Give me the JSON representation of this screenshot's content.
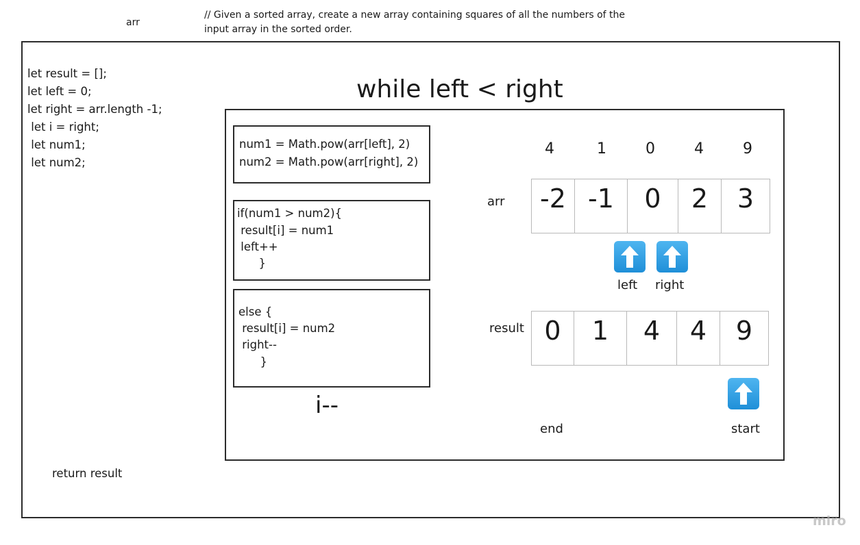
{
  "header": {
    "arr_label": "arr",
    "comment_line1": "// Given a sorted array, create a new array containing squares of all the numbers of the",
    "comment_line2": "input array in the sorted order."
  },
  "setup_code": [
    "let result = [];",
    "let left = 0;",
    "let right = arr.length -1;",
    " let i = right;",
    " let num1;",
    " let num2;"
  ],
  "loop_title": "while left < right",
  "box_pow": [
    "num1 = Math.pow(arr[left], 2)",
    "num2 = Math.pow(arr[right], 2)"
  ],
  "box_if": [
    "if(num1 > num2){",
    " result[i] = num1",
    " left++",
    "      }"
  ],
  "box_else": [
    "else {",
    " result[i] = num2",
    " right--",
    "      }"
  ],
  "decrement": "i--",
  "return_text": "return result",
  "squares_row": [
    "4",
    "1",
    "0",
    "4",
    "9"
  ],
  "arr_row_label": "arr",
  "arr_values": [
    "-2",
    "-1",
    "0",
    "2",
    "3"
  ],
  "pointer_labels": {
    "left": "left",
    "right": "right"
  },
  "result_row_label": "result",
  "result_values": [
    "0",
    "1",
    "4",
    "4",
    "9"
  ],
  "result_labels": {
    "end": "end",
    "start": "start"
  },
  "watermark": "miro",
  "colors": {
    "arrow": "#2a9be6",
    "border": "#2b2b2b",
    "cell_border": "#b9b9b9"
  },
  "icons": [
    "arrow-up-icon"
  ]
}
